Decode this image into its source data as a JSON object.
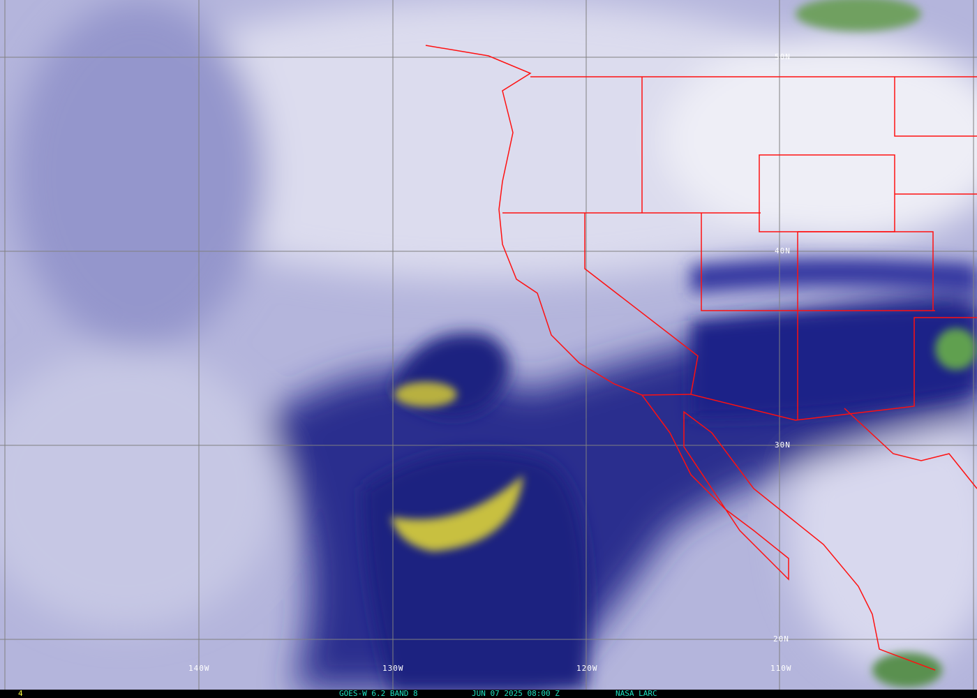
{
  "map": {
    "lat_labels": [
      "50N",
      "40N",
      "30N",
      "20N"
    ],
    "lon_labels": [
      "140W",
      "130W",
      "120W",
      "110W"
    ],
    "colors": {
      "light": "#cfd0e8",
      "mid": "#8e90c8",
      "dark": "#1b2080",
      "yellow": "#c8c040",
      "border": "#ff1010",
      "grid": "#808080",
      "text_cyan": "#20e0c0",
      "text_yellow": "#ffff40"
    }
  },
  "footer": {
    "frame_number": "4",
    "product": "GOES-W 6.2 BAND 8",
    "datetime": "JUN 07 2025 08:00 Z",
    "source": "NASA LARC"
  }
}
